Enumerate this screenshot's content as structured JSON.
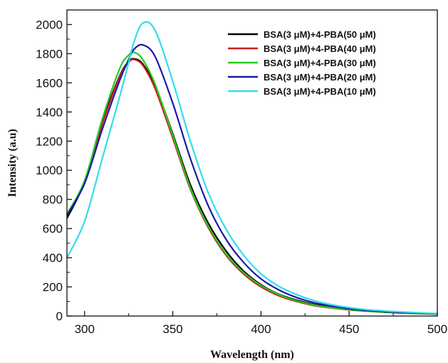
{
  "chart_data": {
    "type": "line",
    "title": "",
    "xlabel": "Wavelength (nm)",
    "ylabel": "Intensity (a.u)",
    "xlim": [
      290,
      500
    ],
    "ylim": [
      0,
      2100
    ],
    "x_ticks": [
      300,
      350,
      400,
      450,
      500
    ],
    "y_ticks": [
      0,
      200,
      400,
      600,
      800,
      1000,
      1200,
      1400,
      1600,
      1800,
      2000
    ],
    "grid": false,
    "legend_position": "top-right",
    "x": [
      290,
      300,
      310,
      320,
      325,
      328,
      333,
      340,
      350,
      360,
      370,
      380,
      390,
      400,
      410,
      420,
      430,
      440,
      450,
      460,
      470,
      480,
      490,
      500
    ],
    "series": [
      {
        "name": "BSA(3 μM)+4-PBA(50 μM)",
        "color": "#000000",
        "values": [
          670,
          920,
          1330,
          1650,
          1745,
          1765,
          1730,
          1580,
          1250,
          900,
          640,
          450,
          310,
          215,
          150,
          110,
          80,
          60,
          45,
          35,
          28,
          22,
          18,
          14
        ]
      },
      {
        "name": "BSA(3 μM)+4-PBA(40 μM)",
        "color": "#c8201e",
        "values": [
          690,
          915,
          1315,
          1645,
          1740,
          1760,
          1720,
          1560,
          1220,
          870,
          610,
          420,
          290,
          200,
          140,
          100,
          72,
          55,
          42,
          33,
          26,
          20,
          16,
          13
        ]
      },
      {
        "name": "BSA(3 μM)+4-PBA(30 μM)",
        "color": "#22cc22",
        "values": [
          700,
          930,
          1350,
          1700,
          1790,
          1810,
          1760,
          1590,
          1240,
          880,
          620,
          430,
          300,
          210,
          148,
          105,
          76,
          57,
          44,
          34,
          27,
          21,
          17,
          13
        ]
      },
      {
        "name": "BSA(3 μM)+4-PBA(20 μM)",
        "color": "#1a1aa8",
        "values": [
          690,
          910,
          1280,
          1620,
          1760,
          1830,
          1860,
          1780,
          1460,
          1080,
          760,
          530,
          370,
          255,
          180,
          128,
          92,
          68,
          50,
          38,
          30,
          24,
          19,
          15
        ]
      },
      {
        "name": "BSA(3 μM)+4-PBA(10 μM)",
        "color": "#33dde6",
        "values": [
          400,
          650,
          1080,
          1510,
          1740,
          1880,
          2010,
          1960,
          1610,
          1200,
          850,
          600,
          420,
          290,
          205,
          148,
          106,
          78,
          58,
          44,
          35,
          28,
          22,
          17
        ]
      }
    ]
  }
}
